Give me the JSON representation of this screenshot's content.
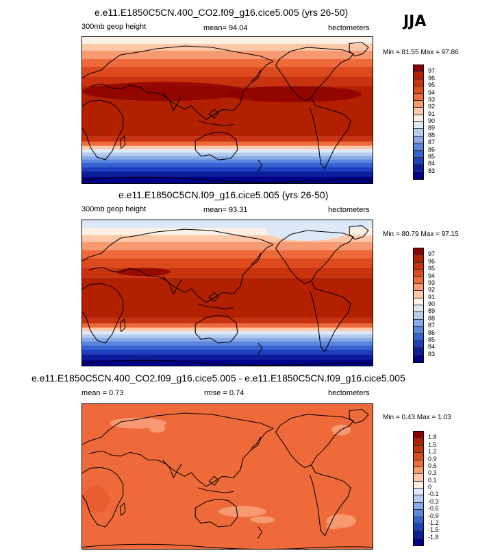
{
  "season": "JJA",
  "panels": [
    {
      "title": "e.e11.E1850C5CN.400_CO2.f09_g16.cice5.005 (yrs 26-50)",
      "variable": "300mb geop height",
      "mean_label": "mean=  94.04",
      "units": "hectometers",
      "min_label": "Min =",
      "min_value": "81.55",
      "max_label": "Max =",
      "max_value": "97.86",
      "colorbar": {
        "labels": [
          "97",
          "96",
          "95",
          "94",
          "93",
          "92",
          "91",
          "90",
          "89",
          "88",
          "87",
          "86",
          "85",
          "84",
          "83"
        ],
        "colors": [
          "#8b0000",
          "#b22000",
          "#c8320e",
          "#dc4a1e",
          "#ef6a3a",
          "#f79a72",
          "#fcc8a8",
          "#fdf0e4",
          "#dce9f7",
          "#b4ccef",
          "#88abe6",
          "#5a86dc",
          "#3462d2",
          "#1e3fc0",
          "#0a1e9c",
          "#00008b"
        ]
      }
    },
    {
      "title": "e.e11.E1850C5CN.f09_g16.cice5.005 (yrs 26-50)",
      "variable": "300mb geop height",
      "mean_label": "mean=  93.31",
      "units": "hectometers",
      "min_label": "Min =",
      "min_value": "80.79",
      "max_label": "Max =",
      "max_value": "97.15",
      "colorbar": {
        "labels": [
          "97",
          "96",
          "95",
          "94",
          "93",
          "92",
          "91",
          "90",
          "89",
          "88",
          "87",
          "86",
          "85",
          "84",
          "83"
        ],
        "colors": [
          "#8b0000",
          "#b22000",
          "#c8320e",
          "#dc4a1e",
          "#ef6a3a",
          "#f79a72",
          "#fcc8a8",
          "#fdf0e4",
          "#dce9f7",
          "#b4ccef",
          "#88abe6",
          "#5a86dc",
          "#3462d2",
          "#1e3fc0",
          "#0a1e9c",
          "#00008b"
        ]
      }
    },
    {
      "title": "e.e11.E1850C5CN.400_CO2.f09_g16.cice5.005 - e.e11.E1850C5CN.f09_g16.cice5.005",
      "mean_label": "mean =   0.73",
      "rmse_label": "rmse =   0.74",
      "units": "hectometers",
      "min_label": "Min =",
      "min_value": "0.43",
      "max_label": "Max =",
      "max_value": "1.03",
      "colorbar": {
        "labels": [
          "1.8",
          "1.5",
          "1.2",
          "0.9",
          "0.6",
          "0.3",
          "0.1",
          "0",
          "-0.1",
          "-0.3",
          "-0.6",
          "-0.9",
          "-1.2",
          "-1.5",
          "-1.8"
        ],
        "colors": [
          "#8b0000",
          "#b22000",
          "#c8320e",
          "#dc4a1e",
          "#ef6a3a",
          "#f79a72",
          "#fcc8a8",
          "#fdf0e4",
          "#dce9f7",
          "#b4ccef",
          "#88abe6",
          "#5a86dc",
          "#3462d2",
          "#1e3fc0",
          "#0a1e9c",
          "#00008b"
        ]
      }
    }
  ]
}
